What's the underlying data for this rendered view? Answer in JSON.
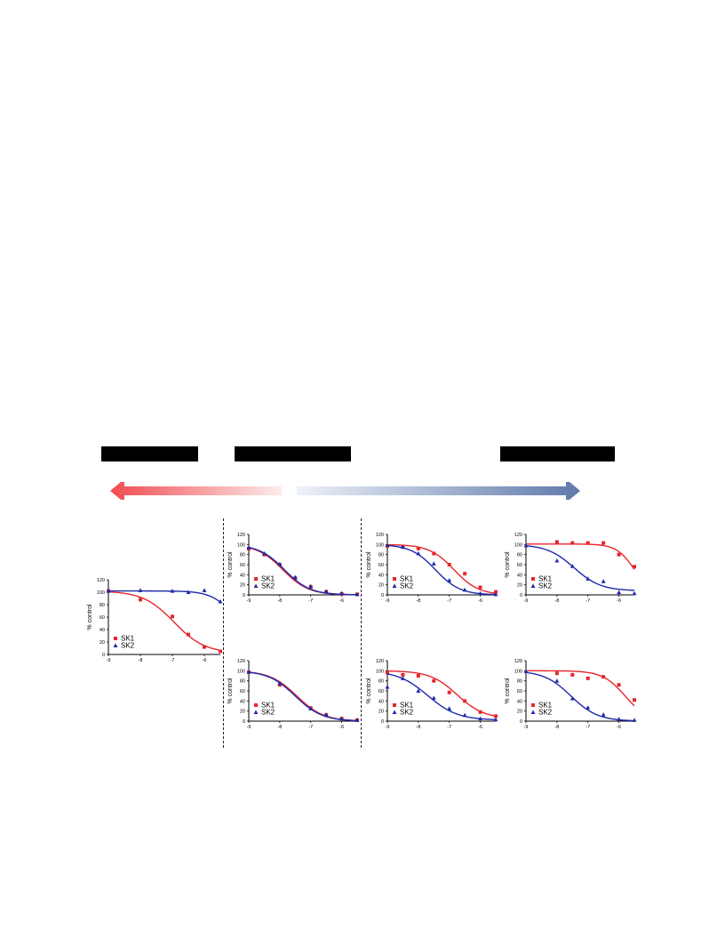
{
  "colors": {
    "sk1": "#e8262b",
    "sk2": "#1d2aa8",
    "arrow_left": "#f04b50",
    "arrow_right": "#5f79a9"
  },
  "chart_data": [
    {
      "type": "scatter",
      "title": "",
      "xlabel": "",
      "ylabel": "% control",
      "xlim": [
        -9,
        -5.5
      ],
      "ylim": [
        0,
        120
      ],
      "x_ticks": [
        "-9",
        "-8",
        "-7",
        "-6"
      ],
      "y_ticks": [
        "0",
        "20",
        "40",
        "60",
        "80",
        "100",
        "120"
      ],
      "legend": "bottom-left",
      "series": [
        {
          "name": "SK1",
          "marker": "square",
          "x": [
            -9,
            -8,
            -7,
            -6.5,
            -6,
            -5.5
          ],
          "y": [
            102,
            88,
            61,
            32,
            12,
            5
          ],
          "fit": {
            "top": 102,
            "bottom": 2,
            "logIC50": -6.95,
            "hill": 0.9
          }
        },
        {
          "name": "SK2",
          "marker": "triangle",
          "x": [
            -9,
            -8,
            -7,
            -6.5,
            -6,
            -5.5
          ],
          "y": [
            102,
            103,
            102,
            100,
            103,
            85
          ],
          "fit": {
            "top": 102,
            "bottom": 40,
            "logIC50": -5.2,
            "hill": 1.3
          }
        }
      ]
    },
    {
      "type": "scatter",
      "title": "",
      "xlabel": "",
      "ylabel": "% control",
      "xlim": [
        -9,
        -5.5
      ],
      "ylim": [
        0,
        120
      ],
      "x_ticks": [
        "-9",
        "-8",
        "-7",
        "-6"
      ],
      "y_ticks": [
        "0",
        "20",
        "40",
        "60",
        "80",
        "100",
        "120"
      ],
      "legend": "bottom-left",
      "series": [
        {
          "name": "SK1",
          "marker": "square",
          "x": [
            -9,
            -8.5,
            -8,
            -7.5,
            -7,
            -6.5,
            -6,
            -5.5
          ],
          "y": [
            92,
            80,
            60,
            33,
            16,
            6,
            2,
            1
          ],
          "fit": {
            "top": 100,
            "bottom": 0,
            "logIC50": -7.9,
            "hill": 1.05
          }
        },
        {
          "name": "SK2",
          "marker": "triangle",
          "x": [
            -9,
            -8.5,
            -8,
            -7.5,
            -7,
            -6.5,
            -6,
            -5.5
          ],
          "y": [
            94,
            82,
            61,
            35,
            17,
            7,
            3,
            1
          ],
          "fit": {
            "top": 100,
            "bottom": 0,
            "logIC50": -7.85,
            "hill": 1.05
          }
        }
      ]
    },
    {
      "type": "scatter",
      "title": "",
      "xlabel": "",
      "ylabel": "% control",
      "xlim": [
        -9,
        -5.5
      ],
      "ylim": [
        0,
        120
      ],
      "x_ticks": [
        "-9",
        "-8",
        "-7",
        "-6"
      ],
      "y_ticks": [
        "0",
        "20",
        "40",
        "60",
        "80",
        "100",
        "120"
      ],
      "legend": "bottom-left",
      "series": [
        {
          "name": "SK1",
          "marker": "square",
          "x": [
            -9,
            -8.5,
            -8,
            -7.5,
            -7,
            -6.5,
            -6,
            -5.5
          ],
          "y": [
            97,
            95,
            92,
            82,
            60,
            42,
            15,
            6
          ],
          "fit": {
            "top": 100,
            "bottom": 0,
            "logIC50": -6.85,
            "hill": 1.1
          }
        },
        {
          "name": "SK2",
          "marker": "triangle",
          "x": [
            -9,
            -8.5,
            -8,
            -7.5,
            -7,
            -6.5,
            -6,
            -5.5
          ],
          "y": [
            99,
            95,
            82,
            62,
            29,
            10,
            3,
            1
          ],
          "fit": {
            "top": 100,
            "bottom": 0,
            "logIC50": -7.45,
            "hill": 1.1
          }
        }
      ]
    },
    {
      "type": "scatter",
      "title": "",
      "xlabel": "",
      "ylabel": "% control",
      "xlim": [
        -9,
        -5.5
      ],
      "ylim": [
        0,
        120
      ],
      "x_ticks": [
        "-9",
        "-8",
        "-7",
        "-6"
      ],
      "y_ticks": [
        "0",
        "20",
        "40",
        "60",
        "80",
        "100",
        "120"
      ],
      "legend": "bottom-left",
      "series": [
        {
          "name": "SK1",
          "marker": "square",
          "x": [
            -8,
            -7.5,
            -7,
            -6.5,
            -6,
            -5.5
          ],
          "y": [
            105,
            103,
            103,
            103,
            80,
            56
          ],
          "fit": {
            "top": 101,
            "bottom": 0,
            "logIC50": -5.5,
            "hill": 1.5
          }
        },
        {
          "name": "SK2",
          "marker": "triangle",
          "x": [
            -9,
            -8,
            -7.5,
            -7,
            -6.5,
            -6,
            -5.5
          ],
          "y": [
            98,
            68,
            57,
            32,
            27,
            5,
            3
          ],
          "fit": {
            "top": 100,
            "bottom": 8,
            "logIC50": -7.45,
            "hill": 1.0
          }
        }
      ]
    },
    {
      "type": "scatter",
      "title": "",
      "xlabel": "",
      "ylabel": "% control",
      "xlim": [
        -9,
        -5.5
      ],
      "ylim": [
        0,
        120
      ],
      "x_ticks": [
        "-9",
        "-8",
        "-7",
        "-6"
      ],
      "y_ticks": [
        "0",
        "20",
        "40",
        "60",
        "80",
        "100",
        "120"
      ],
      "legend": "bottom-left",
      "series": [
        {
          "name": "SK1",
          "marker": "square",
          "x": [
            -9,
            -8,
            -7,
            -6.5,
            -6,
            -5.5
          ],
          "y": [
            97,
            72,
            26,
            12,
            5,
            2
          ],
          "fit": {
            "top": 100,
            "bottom": 0,
            "logIC50": -7.45,
            "hill": 1.0
          }
        },
        {
          "name": "SK2",
          "marker": "triangle",
          "x": [
            -9,
            -8,
            -7,
            -6.5,
            -6,
            -5.5
          ],
          "y": [
            98,
            75,
            25,
            13,
            5,
            2
          ],
          "fit": {
            "top": 100,
            "bottom": 0,
            "logIC50": -7.5,
            "hill": 1.0
          }
        }
      ]
    },
    {
      "type": "scatter",
      "title": "",
      "xlabel": "",
      "ylabel": "% control",
      "xlim": [
        -9,
        -5.5
      ],
      "ylim": [
        0,
        120
      ],
      "x_ticks": [
        "-9",
        "-8",
        "-7",
        "-6"
      ],
      "y_ticks": [
        "0",
        "20",
        "40",
        "60",
        "80",
        "100",
        "120"
      ],
      "legend": "bottom-left",
      "series": [
        {
          "name": "SK1",
          "marker": "square",
          "x": [
            -9,
            -8.5,
            -8,
            -7.5,
            -7,
            -6.5,
            -6,
            -5.5
          ],
          "y": [
            96,
            92,
            90,
            80,
            57,
            40,
            18,
            10
          ],
          "fit": {
            "top": 100,
            "bottom": 5,
            "logIC50": -6.75,
            "hill": 1.0
          }
        },
        {
          "name": "SK2",
          "marker": "triangle",
          "x": [
            -9,
            -8.5,
            -8,
            -7.5,
            -7,
            -6.5,
            -6,
            -5.5
          ],
          "y": [
            68,
            85,
            60,
            46,
            25,
            12,
            5,
            3
          ],
          "fit": {
            "top": 100,
            "bottom": 2,
            "logIC50": -7.7,
            "hill": 0.9
          }
        }
      ]
    },
    {
      "type": "scatter",
      "title": "",
      "xlabel": "",
      "ylabel": "% control",
      "xlim": [
        -9,
        -5.5
      ],
      "ylim": [
        0,
        120
      ],
      "x_ticks": [
        "-9",
        "-8",
        "-7",
        "-6"
      ],
      "y_ticks": [
        "0",
        "20",
        "40",
        "60",
        "80",
        "100",
        "120"
      ],
      "legend": "bottom-left",
      "series": [
        {
          "name": "SK1",
          "marker": "square",
          "x": [
            -8,
            -7.5,
            -7,
            -6.5,
            -6,
            -5.5
          ],
          "y": [
            95,
            92,
            85,
            88,
            72,
            42
          ],
          "fit": {
            "top": 100,
            "bottom": 0,
            "logIC50": -5.8,
            "hill": 1.2
          }
        },
        {
          "name": "SK2",
          "marker": "triangle",
          "x": [
            -9,
            -8,
            -7.5,
            -7,
            -6.5,
            -6,
            -5.5
          ],
          "y": [
            99,
            80,
            45,
            27,
            13,
            4,
            2
          ],
          "fit": {
            "top": 100,
            "bottom": 0,
            "logIC50": -7.55,
            "hill": 1.0
          }
        }
      ]
    }
  ]
}
